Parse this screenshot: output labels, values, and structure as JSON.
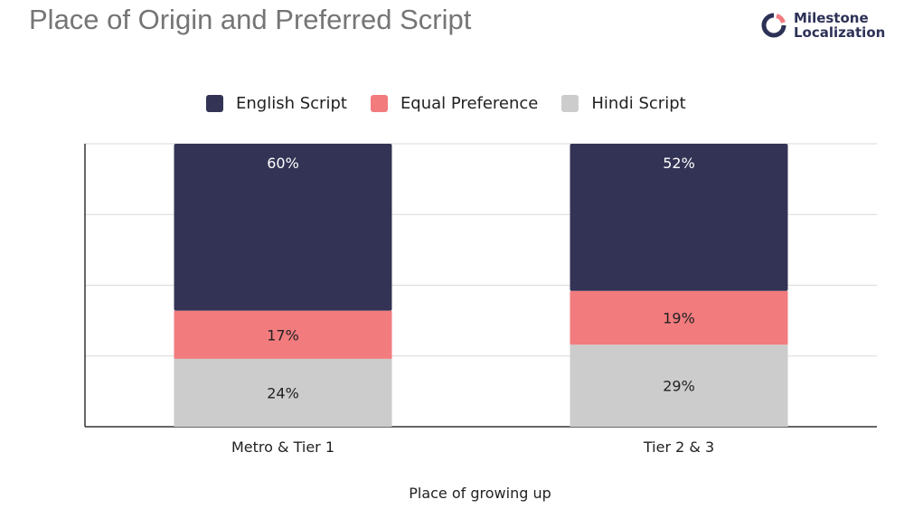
{
  "header": {
    "title": "Place of Origin and Preferred Script",
    "logo_line1": "Milestone",
    "logo_line2": "Localization"
  },
  "chart_data": {
    "type": "bar",
    "stacked": true,
    "categories": [
      "Metro & Tier 1",
      "Tier 2 & 3"
    ],
    "series": [
      {
        "name": "Hindi Script",
        "values": [
          24,
          29
        ],
        "labels": [
          "24%",
          "29%"
        ],
        "color": "#cccccc",
        "label_color": "#222222"
      },
      {
        "name": "Equal Preference",
        "values": [
          17,
          19
        ],
        "labels": [
          "17%",
          "19%"
        ],
        "color": "#f27b7e",
        "label_color": "#222222"
      },
      {
        "name": "English Script",
        "values": [
          60,
          52
        ],
        "labels": [
          "60%",
          "52%"
        ],
        "color": "#333355",
        "label_color": "#ffffff"
      }
    ],
    "legend_order": [
      "English Script",
      "Equal Preference",
      "Hindi Script"
    ],
    "xlabel": "Place of growing up",
    "ylabel": "",
    "ylim": [
      0,
      100
    ],
    "grid": true,
    "legend_position": "top"
  }
}
